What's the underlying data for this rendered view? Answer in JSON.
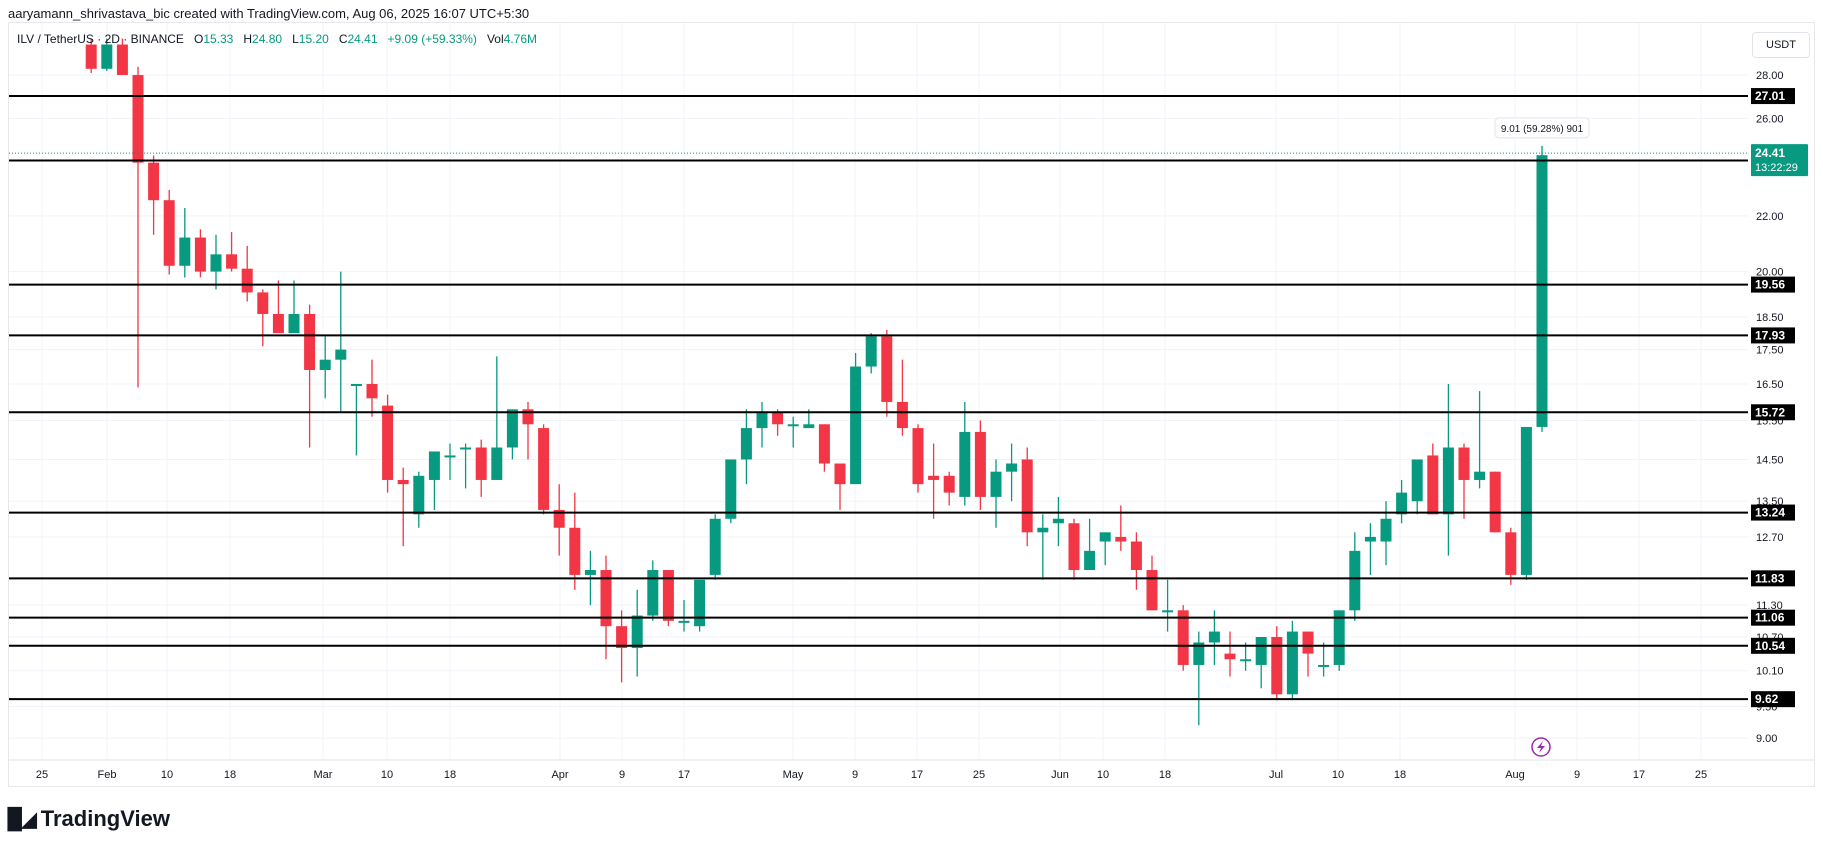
{
  "header": {
    "credit": "aaryamann_shrivastava_bic created with TradingView.com, Aug 06, 2025 16:07 UTC+5:30"
  },
  "legend": {
    "symbol": "ILV / TetherUS · 2D · BINANCE",
    "o_label": "O",
    "o": "15.33",
    "h_label": "H",
    "h": "24.80",
    "l_label": "L",
    "l": "15.20",
    "c_label": "C",
    "c": "24.41",
    "change": "+9.09 (+59.33%)",
    "vol_label": "Vol",
    "vol": "4.76M"
  },
  "currency_button": "USDT",
  "measure_tooltip": "9.01 (59.28%) 901",
  "last_price": {
    "price": "24.41",
    "countdown": "13:22:29"
  },
  "footer": {
    "logo_text": "TradingView"
  },
  "colors": {
    "up": "#089981",
    "down": "#f23645",
    "level_line": "#000000",
    "grid": "#f0f3fa",
    "alert_icon": "#9c27b0"
  },
  "chart_data": {
    "type": "candlestick",
    "title": "ILV / TetherUS · 2D · BINANCE",
    "xlabel": "",
    "ylabel": "USDT",
    "yscale": "log",
    "ylim": [
      8.7,
      29.5
    ],
    "price_ticks": [
      "28.00",
      "26.00",
      "22.00",
      "20.00",
      "18.50",
      "17.50",
      "16.50",
      "15.50",
      "14.50",
      "13.50",
      "12.70",
      "11.30",
      "10.70",
      "10.10",
      "9.50",
      "9.00"
    ],
    "x_ticks": [
      "25",
      "Feb",
      "10",
      "18",
      "Mar",
      "10",
      "18",
      "Apr",
      "9",
      "17",
      "May",
      "9",
      "17",
      "25",
      "Jun",
      "10",
      "18",
      "Jul",
      "10",
      "18",
      "Aug",
      "9",
      "17",
      "25"
    ],
    "horizontal_levels": [
      27.01,
      24.19,
      19.56,
      17.93,
      15.72,
      13.24,
      11.83,
      11.06,
      10.54,
      9.62
    ],
    "last_price": 24.41,
    "candles": [
      {
        "o": 29.5,
        "h": 29.8,
        "l": 28.1,
        "c": 28.3
      },
      {
        "o": 28.3,
        "h": 29.8,
        "l": 28.2,
        "c": 29.5
      },
      {
        "o": 29.5,
        "h": 29.8,
        "l": 28.0,
        "c": 28.0
      },
      {
        "o": 28.0,
        "h": 28.4,
        "l": 16.4,
        "c": 24.1
      },
      {
        "o": 24.1,
        "h": 24.4,
        "l": 21.3,
        "c": 22.6
      },
      {
        "o": 22.6,
        "h": 23.0,
        "l": 19.9,
        "c": 20.2
      },
      {
        "o": 20.2,
        "h": 22.3,
        "l": 19.8,
        "c": 21.2
      },
      {
        "o": 21.2,
        "h": 21.5,
        "l": 19.8,
        "c": 20.0
      },
      {
        "o": 20.0,
        "h": 21.3,
        "l": 19.4,
        "c": 20.6
      },
      {
        "o": 20.6,
        "h": 21.4,
        "l": 20.0,
        "c": 20.1
      },
      {
        "o": 20.1,
        "h": 20.9,
        "l": 19.0,
        "c": 19.3
      },
      {
        "o": 19.3,
        "h": 19.4,
        "l": 17.6,
        "c": 18.6
      },
      {
        "o": 18.6,
        "h": 19.7,
        "l": 18.3,
        "c": 18.0
      },
      {
        "o": 18.0,
        "h": 19.7,
        "l": 18.6,
        "c": 18.6
      },
      {
        "o": 18.6,
        "h": 18.9,
        "l": 14.8,
        "c": 16.9
      },
      {
        "o": 16.9,
        "h": 17.9,
        "l": 16.1,
        "c": 17.2
      },
      {
        "o": 17.2,
        "h": 20.0,
        "l": 15.7,
        "c": 17.5
      },
      {
        "o": 16.5,
        "h": 16.5,
        "l": 14.6,
        "c": 16.5
      },
      {
        "o": 16.5,
        "h": 17.2,
        "l": 15.6,
        "c": 16.1
      },
      {
        "o": 15.9,
        "h": 16.2,
        "l": 13.7,
        "c": 14.0
      },
      {
        "o": 14.0,
        "h": 14.3,
        "l": 12.5,
        "c": 13.9
      },
      {
        "o": 13.2,
        "h": 14.2,
        "l": 12.9,
        "c": 14.1
      },
      {
        "o": 14.0,
        "h": 14.6,
        "l": 13.3,
        "c": 14.7
      },
      {
        "o": 14.6,
        "h": 14.9,
        "l": 14.0,
        "c": 14.6
      },
      {
        "o": 14.8,
        "h": 14.9,
        "l": 13.8,
        "c": 14.8
      },
      {
        "o": 14.8,
        "h": 15.0,
        "l": 13.6,
        "c": 14.0
      },
      {
        "o": 14.0,
        "h": 17.3,
        "l": 14.0,
        "c": 14.8
      },
      {
        "o": 14.8,
        "h": 15.8,
        "l": 14.5,
        "c": 15.8
      },
      {
        "o": 15.8,
        "h": 16.0,
        "l": 14.5,
        "c": 15.4
      },
      {
        "o": 15.3,
        "h": 15.4,
        "l": 13.2,
        "c": 13.3
      },
      {
        "o": 13.3,
        "h": 13.9,
        "l": 12.3,
        "c": 12.9
      },
      {
        "o": 12.9,
        "h": 13.7,
        "l": 11.6,
        "c": 11.9
      },
      {
        "o": 11.9,
        "h": 12.4,
        "l": 11.3,
        "c": 12.0
      },
      {
        "o": 12.0,
        "h": 12.3,
        "l": 10.3,
        "c": 10.9
      },
      {
        "o": 10.9,
        "h": 11.2,
        "l": 9.9,
        "c": 10.5
      },
      {
        "o": 10.5,
        "h": 11.6,
        "l": 10.0,
        "c": 11.1
      },
      {
        "o": 11.1,
        "h": 12.2,
        "l": 11.0,
        "c": 12.0
      },
      {
        "o": 12.0,
        "h": 12.0,
        "l": 10.9,
        "c": 11.0
      },
      {
        "o": 11.0,
        "h": 11.4,
        "l": 10.8,
        "c": 11.0
      },
      {
        "o": 10.9,
        "h": 11.3,
        "l": 10.8,
        "c": 11.8
      },
      {
        "o": 11.9,
        "h": 13.2,
        "l": 11.8,
        "c": 13.1
      },
      {
        "o": 13.1,
        "h": 14.1,
        "l": 13.0,
        "c": 14.5
      },
      {
        "o": 14.5,
        "h": 15.8,
        "l": 13.9,
        "c": 15.3
      },
      {
        "o": 15.3,
        "h": 16.0,
        "l": 14.8,
        "c": 15.7
      },
      {
        "o": 15.7,
        "h": 15.8,
        "l": 15.1,
        "c": 15.4
      },
      {
        "o": 15.4,
        "h": 15.6,
        "l": 14.8,
        "c": 15.4
      },
      {
        "o": 15.3,
        "h": 15.8,
        "l": 15.3,
        "c": 15.4
      },
      {
        "o": 15.4,
        "h": 15.4,
        "l": 14.2,
        "c": 14.4
      },
      {
        "o": 14.4,
        "h": 14.4,
        "l": 13.3,
        "c": 13.9
      },
      {
        "o": 13.9,
        "h": 17.4,
        "l": 14.0,
        "c": 17.0
      },
      {
        "o": 17.0,
        "h": 18.0,
        "l": 16.8,
        "c": 17.9
      },
      {
        "o": 17.9,
        "h": 18.1,
        "l": 15.6,
        "c": 16.0
      },
      {
        "o": 16.0,
        "h": 17.2,
        "l": 15.1,
        "c": 15.3
      },
      {
        "o": 15.3,
        "h": 15.4,
        "l": 13.7,
        "c": 13.9
      },
      {
        "o": 14.1,
        "h": 14.9,
        "l": 13.1,
        "c": 14.0
      },
      {
        "o": 14.1,
        "h": 14.2,
        "l": 13.4,
        "c": 13.7
      },
      {
        "o": 13.6,
        "h": 16.0,
        "l": 13.4,
        "c": 15.2
      },
      {
        "o": 15.2,
        "h": 15.5,
        "l": 13.3,
        "c": 13.6
      },
      {
        "o": 13.6,
        "h": 14.5,
        "l": 12.9,
        "c": 14.2
      },
      {
        "o": 14.2,
        "h": 14.9,
        "l": 13.5,
        "c": 14.4
      },
      {
        "o": 14.5,
        "h": 14.8,
        "l": 12.5,
        "c": 12.8
      },
      {
        "o": 12.8,
        "h": 13.2,
        "l": 11.8,
        "c": 12.9
      },
      {
        "o": 13.0,
        "h": 13.6,
        "l": 12.5,
        "c": 13.1
      },
      {
        "o": 13.0,
        "h": 13.1,
        "l": 11.8,
        "c": 12.0
      },
      {
        "o": 12.0,
        "h": 13.1,
        "l": 12.0,
        "c": 12.4
      },
      {
        "o": 12.6,
        "h": 12.8,
        "l": 12.1,
        "c": 12.8
      },
      {
        "o": 12.7,
        "h": 13.4,
        "l": 12.4,
        "c": 12.6
      },
      {
        "o": 12.6,
        "h": 12.8,
        "l": 11.6,
        "c": 12.0
      },
      {
        "o": 12.0,
        "h": 12.3,
        "l": 11.6,
        "c": 11.2
      },
      {
        "o": 11.2,
        "h": 11.8,
        "l": 10.8,
        "c": 11.2
      },
      {
        "o": 11.2,
        "h": 11.3,
        "l": 10.1,
        "c": 10.2
      },
      {
        "o": 10.2,
        "h": 10.8,
        "l": 9.2,
        "c": 10.6
      },
      {
        "o": 10.6,
        "h": 11.2,
        "l": 10.2,
        "c": 10.8
      },
      {
        "o": 10.4,
        "h": 10.8,
        "l": 10.0,
        "c": 10.3
      },
      {
        "o": 10.3,
        "h": 10.6,
        "l": 10.1,
        "c": 10.3
      },
      {
        "o": 10.2,
        "h": 10.7,
        "l": 9.8,
        "c": 10.7
      },
      {
        "o": 10.7,
        "h": 10.9,
        "l": 9.6,
        "c": 9.7
      },
      {
        "o": 9.7,
        "h": 11.0,
        "l": 9.6,
        "c": 10.8
      },
      {
        "o": 10.8,
        "h": 10.8,
        "l": 10.0,
        "c": 10.4
      },
      {
        "o": 10.2,
        "h": 10.6,
        "l": 10.0,
        "c": 10.2
      },
      {
        "o": 10.2,
        "h": 11.2,
        "l": 10.1,
        "c": 11.2
      },
      {
        "o": 11.2,
        "h": 12.8,
        "l": 11.0,
        "c": 12.4
      },
      {
        "o": 12.6,
        "h": 13.0,
        "l": 11.9,
        "c": 12.7
      },
      {
        "o": 12.6,
        "h": 13.5,
        "l": 12.1,
        "c": 13.1
      },
      {
        "o": 13.2,
        "h": 14.0,
        "l": 13.0,
        "c": 13.7
      },
      {
        "o": 13.5,
        "h": 14.3,
        "l": 13.2,
        "c": 14.5
      },
      {
        "o": 14.6,
        "h": 14.9,
        "l": 13.7,
        "c": 13.2
      },
      {
        "o": 13.2,
        "h": 16.5,
        "l": 12.3,
        "c": 14.8
      },
      {
        "o": 14.8,
        "h": 14.9,
        "l": 13.1,
        "c": 14.0
      },
      {
        "o": 14.0,
        "h": 16.3,
        "l": 13.8,
        "c": 14.2
      },
      {
        "o": 14.2,
        "h": 14.2,
        "l": 12.8,
        "c": 12.8
      },
      {
        "o": 12.8,
        "h": 12.9,
        "l": 11.7,
        "c": 11.9
      },
      {
        "o": 11.9,
        "h": 15.3,
        "l": 11.8,
        "c": 15.33
      },
      {
        "o": 15.33,
        "h": 24.8,
        "l": 15.2,
        "c": 24.41
      }
    ]
  }
}
